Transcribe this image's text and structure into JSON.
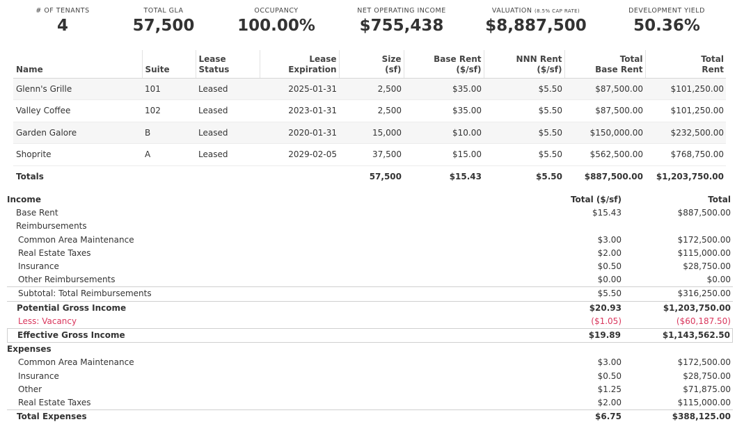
{
  "kpis": {
    "tenants": {
      "label": "# of Tenants",
      "value": "4"
    },
    "gla": {
      "label": "Total GLA",
      "value": "57,500"
    },
    "occupancy": {
      "label": "Occupancy",
      "value": "100.00%"
    },
    "noi": {
      "label": "Net Operating Income",
      "value": "$755,438"
    },
    "valuation": {
      "label": "Valuation",
      "note": "(8.5% cap rate)",
      "value": "$8,887,500"
    },
    "dev_yield": {
      "label": "Development Yield",
      "value": "50.36%"
    }
  },
  "rentroll": {
    "headers": {
      "name": "Name",
      "suite": "Suite",
      "status_1": "Lease",
      "status_2": "Status",
      "exp_1": "Lease",
      "exp_2": "Expiration",
      "size_1": "Size",
      "size_2": "(sf)",
      "base_1": "Base Rent",
      "base_2": "($/sf)",
      "nnn_1": "NNN Rent",
      "nnn_2": "($/sf)",
      "tbr_1": "Total",
      "tbr_2": "Base Rent",
      "tr_1": "Total",
      "tr_2": "Rent"
    },
    "rows": [
      {
        "name": "Glenn's Grille",
        "suite": "101",
        "status": "Leased",
        "expiration": "2025-01-31",
        "size": "2,500",
        "base_rent": "$35.00",
        "nnn_rent": "$5.50",
        "total_base_rent": "$87,500.00",
        "total_rent": "$101,250.00"
      },
      {
        "name": "Valley Coffee",
        "suite": "102",
        "status": "Leased",
        "expiration": "2023-01-31",
        "size": "2,500",
        "base_rent": "$35.00",
        "nnn_rent": "$5.50",
        "total_base_rent": "$87,500.00",
        "total_rent": "$101,250.00"
      },
      {
        "name": "Garden Galore",
        "suite": "B",
        "status": "Leased",
        "expiration": "2020-01-31",
        "size": "15,000",
        "base_rent": "$10.00",
        "nnn_rent": "$5.50",
        "total_base_rent": "$150,000.00",
        "total_rent": "$232,500.00"
      },
      {
        "name": "Shoprite",
        "suite": "A",
        "status": "Leased",
        "expiration": "2029-02-05",
        "size": "37,500",
        "base_rent": "$15.00",
        "nnn_rent": "$5.50",
        "total_base_rent": "$562,500.00",
        "total_rent": "$768,750.00"
      }
    ],
    "totals": {
      "label": "Totals",
      "size": "57,500",
      "base_rent": "$15.43",
      "nnn_rent": "$5.50",
      "total_base_rent": "$887,500.00",
      "total_rent": "$1,203,750.00"
    }
  },
  "proforma": {
    "income_header": "Income",
    "col_psf": "Total ($/sf)",
    "col_total": "Total",
    "base_rent": {
      "label": "Base Rent",
      "psf": "$15.43",
      "total": "$887,500.00"
    },
    "reimbursements_header": "Reimbursements",
    "reimbursements": [
      {
        "label": "Common Area Maintenance",
        "psf": "$3.00",
        "total": "$172,500.00"
      },
      {
        "label": "Real Estate Taxes",
        "psf": "$2.00",
        "total": "$115,000.00"
      },
      {
        "label": "Insurance",
        "psf": "$0.50",
        "total": "$28,750.00"
      },
      {
        "label": "Other Reimbursements",
        "psf": "$0.00",
        "total": "$0.00"
      }
    ],
    "subtotal_reimb": {
      "label": "Subtotal: Total Reimbursements",
      "psf": "$5.50",
      "total": "$316,250.00"
    },
    "pgi": {
      "label": "Potential Gross Income",
      "psf": "$20.93",
      "total": "$1,203,750.00"
    },
    "vacancy": {
      "label": "Less: Vacancy",
      "psf": "($1.05)",
      "total": "($60,187.50)"
    },
    "egi": {
      "label": "Effective Gross Income",
      "psf": "$19.89",
      "total": "$1,143,562.50"
    },
    "expenses_header": "Expenses",
    "expenses": [
      {
        "label": "Common Area Maintenance",
        "psf": "$3.00",
        "total": "$172,500.00"
      },
      {
        "label": "Insurance",
        "psf": "$0.50",
        "total": "$28,750.00"
      },
      {
        "label": "Other",
        "psf": "$1.25",
        "total": "$71,875.00"
      },
      {
        "label": "Real Estate Taxes",
        "psf": "$2.00",
        "total": "$115,000.00"
      }
    ],
    "total_expenses": {
      "label": "Total Expenses",
      "psf": "$6.75",
      "total": "$388,125.00"
    }
  },
  "colors": {
    "negative": "#d9365c",
    "text": "#333333",
    "row_stripe": "#f6f6f6"
  }
}
